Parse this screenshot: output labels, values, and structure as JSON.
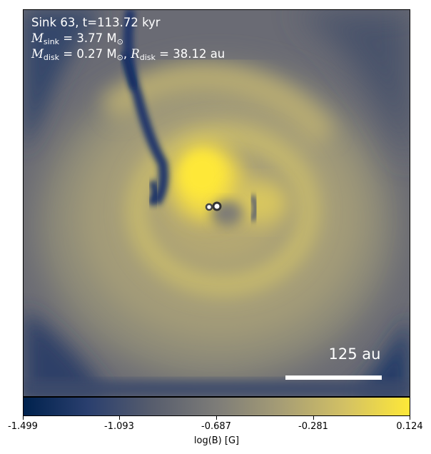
{
  "info": {
    "line1": "Sink 63, t=113.72 kyr",
    "msink_symbol": "M",
    "msink_sub": "sink",
    "msink_value": "= 3.77 M",
    "msink_unit_sub": "⊙",
    "mdisk_symbol": "M",
    "mdisk_sub": "disk",
    "mdisk_value": "= 0.27 M",
    "mdisk_unit_sub": "⊙",
    "rdisk_prefix": ", ",
    "rdisk_symbol": "R",
    "rdisk_sub": "disk",
    "rdisk_value": "= 38.12 au"
  },
  "scale_bar": {
    "label": "125 au"
  },
  "colorbar": {
    "label": "log(B) [G]",
    "min": -1.499,
    "max": 0.124,
    "ticks": [
      "-1.499",
      "-1.093",
      "-0.687",
      "-0.281",
      "0.124"
    ],
    "colors": [
      "#00224e",
      "#2a3f6e",
      "#575d6d",
      "#7d7c78",
      "#a69d75",
      "#d3c164",
      "#fee838"
    ]
  }
}
